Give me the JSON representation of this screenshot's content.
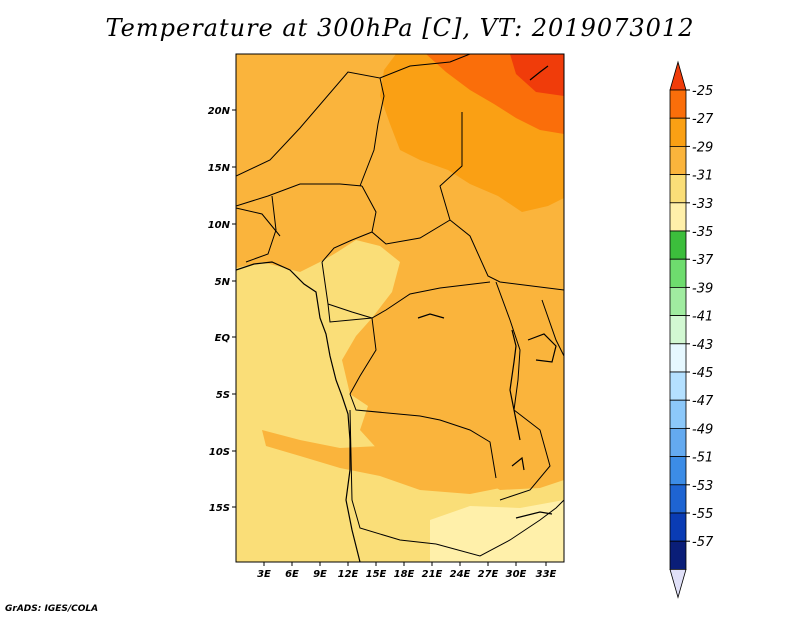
{
  "title": "Temperature at 300hPa [C], VT: 2019073012",
  "footer": "GrADS: IGES/COLA",
  "map": {
    "lat_labels": [
      "20N",
      "15N",
      "10N",
      "5N",
      "EQ",
      "5S",
      "10S",
      "15S"
    ],
    "lon_labels": [
      "3E",
      "6E",
      "9E",
      "12E",
      "15E",
      "18E",
      "21E",
      "24E",
      "27E",
      "30E",
      "33E"
    ]
  },
  "colorbar": {
    "labels": [
      "-25",
      "-27",
      "-29",
      "-31",
      "-33",
      "-35",
      "-37",
      "-39",
      "-41",
      "-43",
      "-45",
      "-47",
      "-49",
      "-51",
      "-53",
      "-55",
      "-57"
    ],
    "colors": [
      "#f03c0a",
      "#fa6e0a",
      "#faa014",
      "#fab43c",
      "#fade78",
      "#fff0aa",
      "#3cbe3c",
      "#6edc6e",
      "#a0eca0",
      "#d2f8d2",
      "#e6f8ff",
      "#b4e0ff",
      "#8cc8fa",
      "#64aaf0",
      "#3c8ce6",
      "#1e64d2",
      "#0a3cb4",
      "#0a1e78",
      "#e0e0f8"
    ]
  }
}
